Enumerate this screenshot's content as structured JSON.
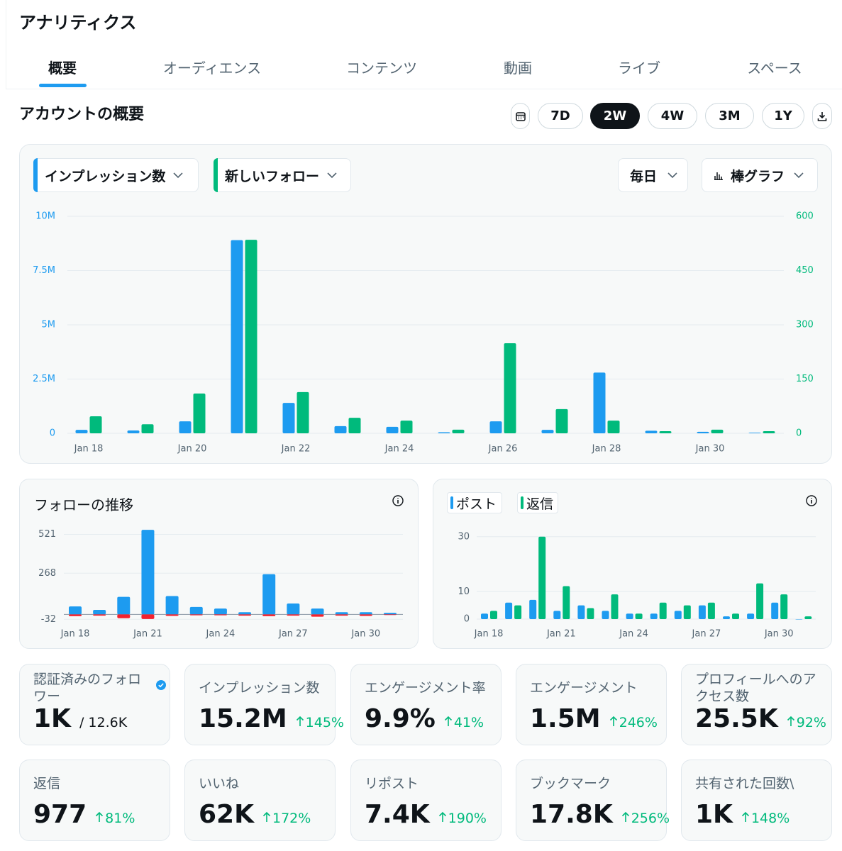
{
  "header": {
    "title": "アナリティクス"
  },
  "tabs": [
    "概要",
    "オーディエンス",
    "コンテンツ",
    "動画",
    "ライブ",
    "スペース"
  ],
  "overview": {
    "title": "アカウントの概要",
    "ranges": [
      "7D",
      "2W",
      "4W",
      "3M",
      "1Y"
    ]
  },
  "controls": {
    "interval": "毎日",
    "chart_style": "棒グラフ"
  },
  "chart_data": [
    {
      "type": "bar",
      "categories": [
        "Jan 18",
        null,
        "Jan 20",
        null,
        "Jan 22",
        null,
        "Jan 24",
        null,
        "Jan 26",
        null,
        "Jan 28",
        null,
        "Jan 30",
        null
      ],
      "series": [
        {
          "name": "インプレッション数",
          "color": "#1d9bf0",
          "values": [
            160000,
            130000,
            550000,
            8900000,
            1400000,
            330000,
            300000,
            50000,
            550000,
            160000,
            2800000,
            120000,
            70000,
            30000
          ]
        },
        {
          "name": "新しいフォロー",
          "color": "#00ba7c",
          "axis": "y2",
          "values": [
            47,
            25,
            110,
            535,
            114,
            43,
            35,
            10,
            249,
            67,
            35,
            6,
            10,
            6
          ]
        }
      ],
      "ylim": [
        0,
        10000000
      ],
      "yticks": [
        0,
        {
          "value": 2500000,
          "label": "2.5M"
        },
        {
          "value": 5000000,
          "label": "5M"
        },
        {
          "value": 7500000,
          "label": "7.5M"
        },
        {
          "value": 10000000,
          "label": "10M"
        }
      ],
      "y2lim": [
        0,
        600
      ],
      "y2ticks": [
        0,
        150,
        300,
        450,
        600
      ],
      "grid": true
    },
    {
      "type": "bar",
      "title": "フォローの推移",
      "categories": [
        "Jan 18",
        null,
        null,
        "Jan 21",
        null,
        null,
        "Jan 24",
        null,
        null,
        "Jan 27",
        null,
        null,
        "Jan 30",
        null
      ],
      "series": [
        {
          "color": "#1d9bf0",
          "values": [
            52,
            29,
            114,
            550,
            119,
            48,
            38,
            14,
            262,
            71,
            38,
            14,
            14,
            10
          ]
        },
        {
          "color": "#f4212e",
          "values": [
            -12,
            -8,
            -25,
            -30,
            -10,
            -6,
            -6,
            -8,
            -12,
            -8,
            -15,
            -8,
            -10,
            -4
          ]
        }
      ],
      "ylim": [
        -40,
        560
      ],
      "yticks": [
        -32,
        268,
        521
      ],
      "grid": true
    },
    {
      "type": "bar",
      "categories": [
        "Jan 18",
        null,
        null,
        "Jan 21",
        null,
        null,
        "Jan 24",
        null,
        null,
        "Jan 27",
        null,
        null,
        "Jan 30",
        null
      ],
      "series": [
        {
          "name": "ポスト",
          "color": "#1d9bf0",
          "values": [
            2,
            6,
            7,
            3,
            5,
            3,
            2,
            2,
            3,
            5,
            1,
            2,
            6,
            0
          ]
        },
        {
          "name": "返信",
          "color": "#00ba7c",
          "values": [
            3,
            5,
            30,
            12,
            4,
            9,
            2,
            6,
            5,
            6,
            2,
            13,
            9,
            1
          ]
        }
      ],
      "ylim": [
        0,
        32
      ],
      "yticks": [
        0,
        10,
        30
      ],
      "grid": true
    }
  ],
  "cards": [
    {
      "label": "認証済みのフォロワー",
      "value": "1K",
      "total": "/ 12.6K"
    },
    {
      "label": "インプレッション数",
      "value": "15.2M",
      "change": "145%"
    },
    {
      "label": "エンゲージメント率",
      "value": "9.9%",
      "change": "41%"
    },
    {
      "label": "エンゲージメント",
      "value": "1.5M",
      "change": "246%"
    },
    {
      "label": "プロフィールへのアクセス数",
      "value": "25.5K",
      "change": "92%"
    },
    {
      "label": "返信",
      "value": "977",
      "change": "81%"
    },
    {
      "label": "いいね",
      "value": "62K",
      "change": "172%"
    },
    {
      "label": "リポスト",
      "value": "7.4K",
      "change": "190%"
    },
    {
      "label": "ブックマーク",
      "value": "17.8K",
      "change": "256%"
    },
    {
      "label": "共有された回数\\",
      "value": "1K",
      "change": "148%"
    }
  ]
}
